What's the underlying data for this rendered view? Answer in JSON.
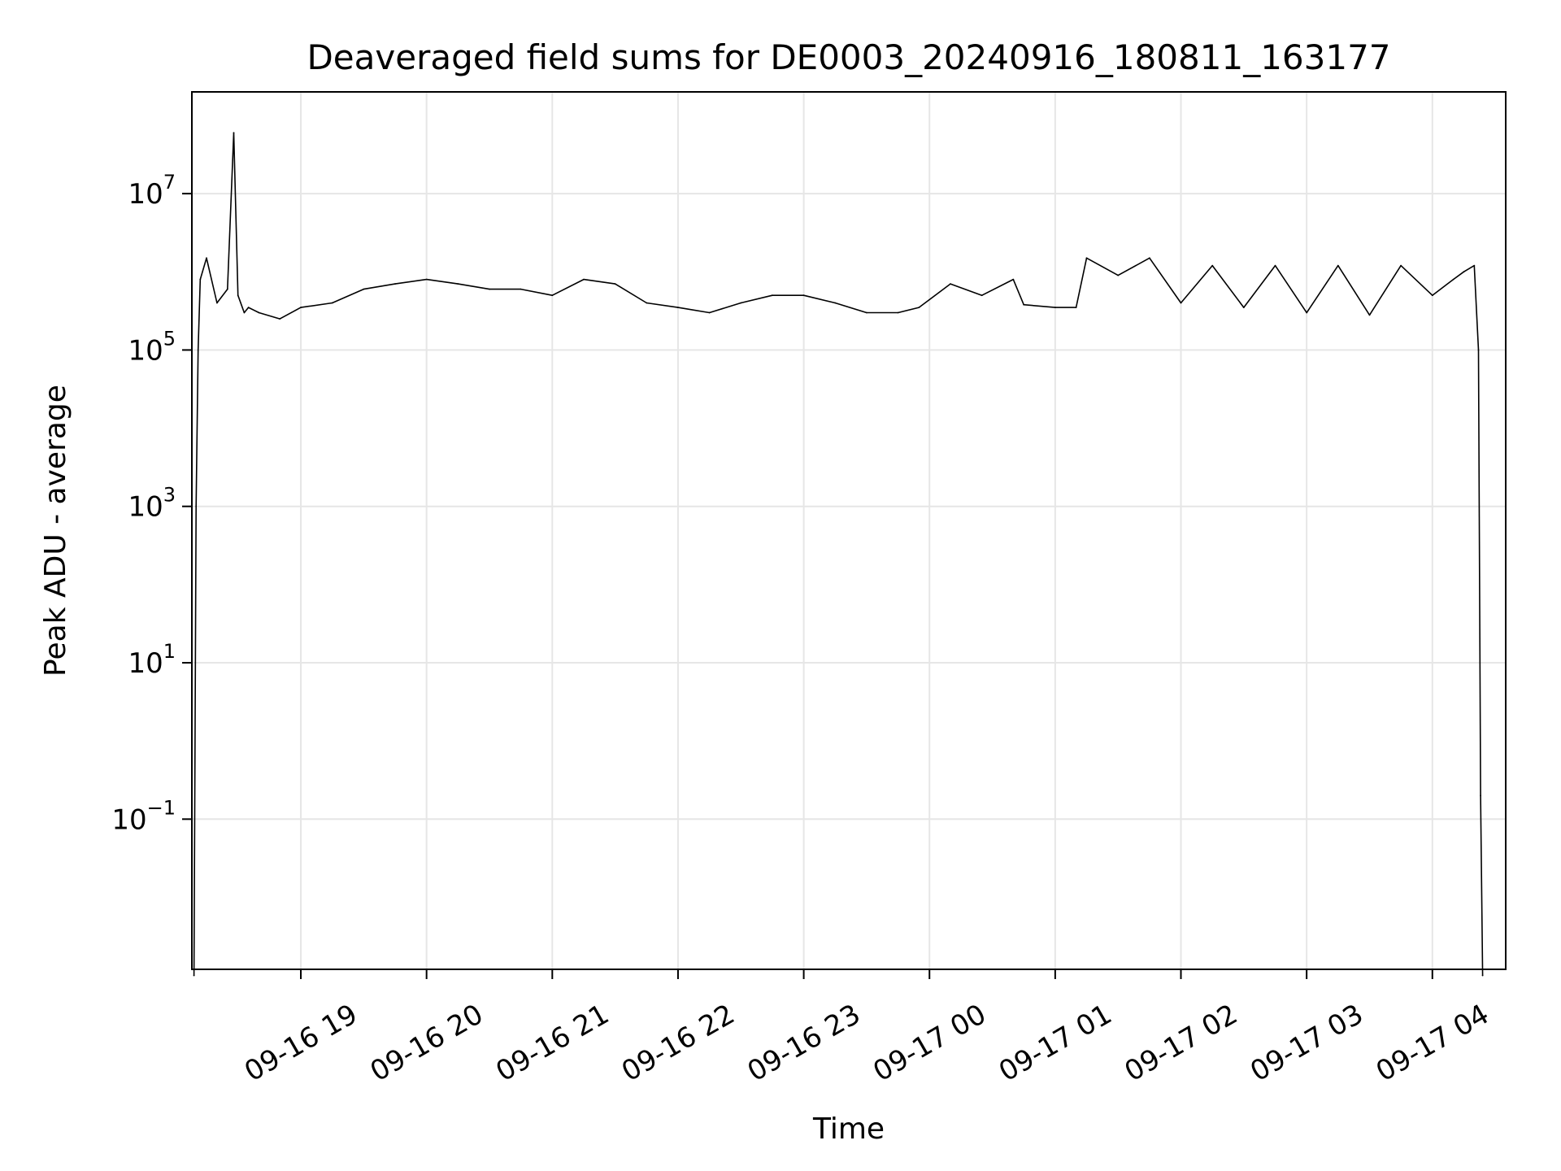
{
  "chart_data": {
    "type": "line",
    "title": "Deaveraged field sums for DE0003_20240916_180811_163177",
    "xlabel": "Time",
    "ylabel": "Peak ADU - average",
    "y_scale": "log",
    "ylim": [
      0.0012,
      200000000
    ],
    "xlim": [
      "2024-09-16 18:08",
      "2024-09-17 04:35"
    ],
    "grid": true,
    "line_color": "#000000",
    "x_ticks": [
      {
        "label": "09-16 19",
        "value": "2024-09-16 19:00"
      },
      {
        "label": "09-16 20",
        "value": "2024-09-16 20:00"
      },
      {
        "label": "09-16 21",
        "value": "2024-09-16 21:00"
      },
      {
        "label": "09-16 22",
        "value": "2024-09-16 22:00"
      },
      {
        "label": "09-16 23",
        "value": "2024-09-16 23:00"
      },
      {
        "label": "09-17 00",
        "value": "2024-09-17 00:00"
      },
      {
        "label": "09-17 01",
        "value": "2024-09-17 01:00"
      },
      {
        "label": "09-17 02",
        "value": "2024-09-17 02:00"
      },
      {
        "label": "09-17 03",
        "value": "2024-09-17 03:00"
      },
      {
        "label": "09-17 04",
        "value": "2024-09-17 04:00"
      }
    ],
    "y_ticks": [
      {
        "base": "10",
        "exp": "7",
        "value": 10000000
      },
      {
        "base": "10",
        "exp": "5",
        "value": 100000
      },
      {
        "base": "10",
        "exp": "3",
        "value": 1000
      },
      {
        "base": "10",
        "exp": "1",
        "value": 10
      },
      {
        "base": "10",
        "exp": "−1",
        "value": 0.1
      }
    ],
    "series": [
      {
        "x": [
          "2024-09-16 18:09",
          "2024-09-16 18:10",
          "2024-09-16 18:11",
          "2024-09-16 18:12",
          "2024-09-16 18:15",
          "2024-09-16 18:20",
          "2024-09-16 18:25",
          "2024-09-16 18:28",
          "2024-09-16 18:30",
          "2024-09-16 18:33",
          "2024-09-16 18:35",
          "2024-09-16 18:40",
          "2024-09-16 18:50",
          "2024-09-16 19:00",
          "2024-09-16 19:15",
          "2024-09-16 19:30",
          "2024-09-16 19:45",
          "2024-09-16 20:00",
          "2024-09-16 20:15",
          "2024-09-16 20:30",
          "2024-09-16 20:45",
          "2024-09-16 21:00",
          "2024-09-16 21:15",
          "2024-09-16 21:30",
          "2024-09-16 21:45",
          "2024-09-16 22:00",
          "2024-09-16 22:15",
          "2024-09-16 22:30",
          "2024-09-16 22:45",
          "2024-09-16 23:00",
          "2024-09-16 23:15",
          "2024-09-16 23:30",
          "2024-09-16 23:45",
          "2024-09-16 23:55",
          "2024-09-17 00:10",
          "2024-09-17 00:25",
          "2024-09-17 00:40",
          "2024-09-17 00:45",
          "2024-09-17 01:00",
          "2024-09-17 01:10",
          "2024-09-17 01:15",
          "2024-09-17 01:30",
          "2024-09-17 01:45",
          "2024-09-17 02:00",
          "2024-09-17 02:15",
          "2024-09-17 02:30",
          "2024-09-17 02:45",
          "2024-09-17 03:00",
          "2024-09-17 03:15",
          "2024-09-17 03:30",
          "2024-09-17 03:45",
          "2024-09-17 04:00",
          "2024-09-17 04:10",
          "2024-09-17 04:15",
          "2024-09-17 04:20",
          "2024-09-17 04:22",
          "2024-09-17 04:23",
          "2024-09-17 04:24"
        ],
        "y": [
          0.001,
          1000,
          100000,
          800000,
          1500000,
          400000,
          600000,
          60000000,
          500000,
          300000,
          350000,
          300000,
          250000,
          350000,
          400000,
          600000,
          700000,
          800000,
          700000,
          600000,
          600000,
          500000,
          800000,
          700000,
          400000,
          350000,
          300000,
          400000,
          500000,
          500000,
          400000,
          300000,
          300000,
          350000,
          700000,
          500000,
          800000,
          380000,
          350000,
          350000,
          1500000,
          900000,
          1500000,
          400000,
          1200000,
          350000,
          1200000,
          300000,
          1200000,
          280000,
          1200000,
          500000,
          800000,
          1000000,
          1200000,
          100000,
          0.2,
          0.001
        ]
      }
    ]
  }
}
